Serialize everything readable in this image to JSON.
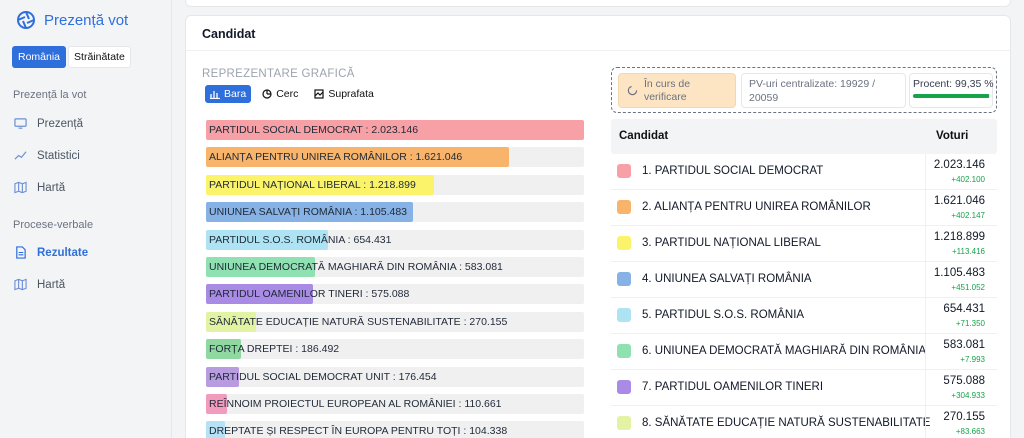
{
  "app": {
    "title": "Prezență vot"
  },
  "region": {
    "romania": "România",
    "strainatate": "Străinătate"
  },
  "sidebar": {
    "section1": "Prezență la vot",
    "items1": [
      {
        "label": "Prezență",
        "icon": "monitor-icon"
      },
      {
        "label": "Statistici",
        "icon": "trend-icon"
      },
      {
        "label": "Hartă",
        "icon": "map-icon"
      }
    ],
    "section2": "Procese-verbale",
    "items2": [
      {
        "label": "Rezultate",
        "icon": "document-icon",
        "active": true
      },
      {
        "label": "Hartă",
        "icon": "map-icon"
      }
    ]
  },
  "card": {
    "title": "Candidat"
  },
  "chart": {
    "label": "REPREZENTARE GRAFICĂ",
    "tabs": [
      {
        "label": "Bara",
        "icon": "bar-chart-icon",
        "active": true
      },
      {
        "label": "Cerc",
        "icon": "pie-chart-icon"
      },
      {
        "label": "Suprafata",
        "icon": "area-chart-icon"
      }
    ]
  },
  "chart_data": {
    "type": "bar",
    "orientation": "horizontal",
    "categories": [
      "PARTIDUL SOCIAL DEMOCRAT",
      "ALIANȚA PENTRU UNIREA ROMÂNILOR",
      "PARTIDUL NAȚIONAL LIBERAL",
      "UNIUNEA SALVAȚI ROMÂNIA",
      "PARTIDUL S.O.S. ROMÂNIA",
      "UNIUNEA DEMOCRATĂ MAGHIARĂ DIN ROMÂNIA",
      "PARTIDUL OAMENILOR TINERI",
      "SĂNĂTATE EDUCAȚIE NATURĂ SUSTENABILITATE",
      "FORȚA DREPTEI",
      "PARTIDUL SOCIAL DEMOCRAT UNIT",
      "REÎNNOIM PROIECTUL EUROPEAN AL ROMÂNIEI",
      "DREPTATE ȘI RESPECT ÎN EUROPA PENTRU TOȚI"
    ],
    "values": [
      2023146,
      1621046,
      1218899,
      1105483,
      654431,
      583081,
      575088,
      270155,
      186492,
      176454,
      110661,
      104338
    ],
    "labels": [
      "PARTIDUL SOCIAL DEMOCRAT : 2.023.146",
      "ALIANȚA PENTRU UNIREA ROMÂNILOR : 1.621.046",
      "PARTIDUL NAȚIONAL LIBERAL : 1.218.899",
      "UNIUNEA SALVAȚI ROMÂNIA : 1.105.483",
      "PARTIDUL S.O.S. ROMÂNIA : 654.431",
      "UNIUNEA DEMOCRATĂ MAGHIARĂ DIN ROMÂNIA : 583.081",
      "PARTIDUL OAMENILOR TINERI : 575.088",
      "SĂNĂTATE EDUCAȚIE NATURĂ SUSTENABILITATE : 270.155",
      "FORȚA DREPTEI : 186.492",
      "PARTIDUL SOCIAL DEMOCRAT UNIT : 176.454",
      "REÎNNOIM PROIECTUL EUROPEAN AL ROMÂNIEI : 110.661",
      "DREPTATE ȘI RESPECT ÎN EUROPA PENTRU TOȚI : 104.338"
    ],
    "colors": [
      "#f7a1a6",
      "#f8b46a",
      "#fbf46a",
      "#87b2e6",
      "#aee3f3",
      "#8fe1b1",
      "#a98be6",
      "#e2f3a3",
      "#8fd9a0",
      "#b99be0",
      "#f29bbd",
      "#b6e2f5"
    ],
    "xlim": [
      0,
      2023146
    ]
  },
  "status": {
    "state": "În curs de verificare",
    "pv_text": "PV-uri centralizate: 19929 / 20059",
    "percent_text": "Procent: 99,35 %",
    "percent_value": 99.35
  },
  "table": {
    "col_candidate": "Candidat",
    "col_votes": "Voturi",
    "rows": [
      {
        "name": "1. PARTIDUL SOCIAL DEMOCRAT",
        "votes": "2.023.146",
        "delta": "+402.100",
        "color": "#f7a1a6"
      },
      {
        "name": "2. ALIANȚA PENTRU UNIREA ROMÂNILOR",
        "votes": "1.621.046",
        "delta": "+402.147",
        "color": "#f8b46a"
      },
      {
        "name": "3. PARTIDUL NAȚIONAL LIBERAL",
        "votes": "1.218.899",
        "delta": "+113.416",
        "color": "#fbf46a"
      },
      {
        "name": "4. UNIUNEA SALVAȚI ROMÂNIA",
        "votes": "1.105.483",
        "delta": "+451.052",
        "color": "#87b2e6"
      },
      {
        "name": "5. PARTIDUL S.O.S. ROMÂNIA",
        "votes": "654.431",
        "delta": "+71.350",
        "color": "#aee3f3"
      },
      {
        "name": "6. UNIUNEA DEMOCRATĂ MAGHIARĂ DIN ROMÂNIA",
        "votes": "583.081",
        "delta": "+7.993",
        "color": "#8fe1b1"
      },
      {
        "name": "7. PARTIDUL OAMENILOR TINERI",
        "votes": "575.088",
        "delta": "+304.933",
        "color": "#a98be6"
      },
      {
        "name": "8. SĂNĂTATE EDUCAȚIE NATURĂ SUSTENABILITATE",
        "votes": "270.155",
        "delta": "+83.663",
        "color": "#e2f3a3"
      }
    ]
  }
}
